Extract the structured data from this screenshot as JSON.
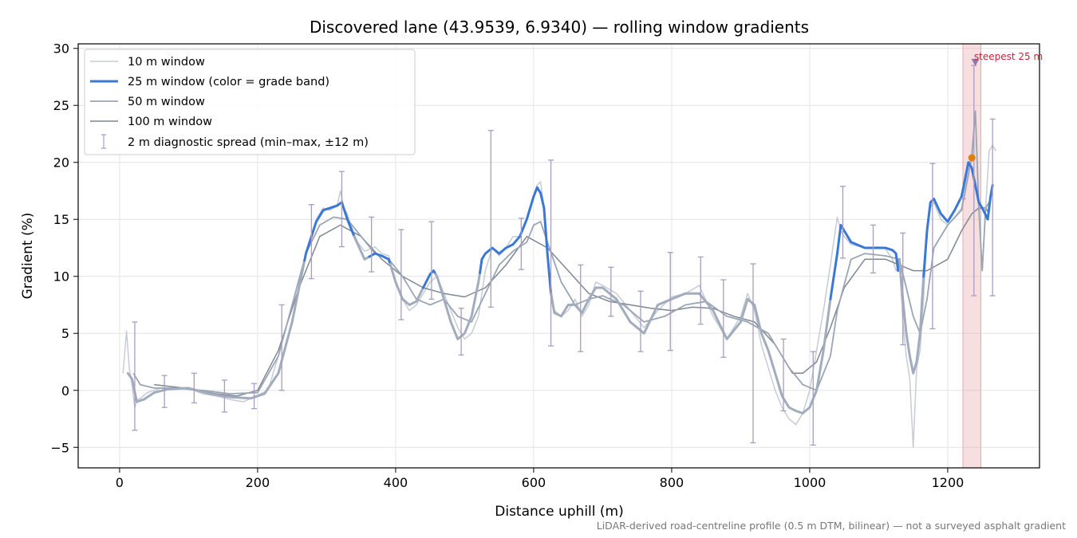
{
  "chart_data": {
    "type": "line",
    "title": "Discovered lane (43.9539, 6.9340) — rolling window gradients",
    "xlabel": "Distance uphill (m)",
    "ylabel": "Gradient (%)",
    "footnote": "LiDAR-derived road-centreline profile (0.5 m DTM, bilinear) — not a surveyed asphalt gradient",
    "xlim": [
      -60,
      1333
    ],
    "ylim": [
      -6.8,
      30.4
    ],
    "x_ticks": [
      0,
      200,
      400,
      600,
      800,
      1000,
      1200
    ],
    "y_ticks": [
      -5,
      0,
      5,
      10,
      15,
      20,
      25,
      30
    ],
    "grid": true,
    "legend_position": "top-left",
    "colors": {
      "w10": "#c6ccd6",
      "w25_band": "#3a78d6",
      "w25_flat": "#a1acbd",
      "w50": "#9aa5b4",
      "w100": "#7f8793",
      "errorbar": "#a99cc0",
      "highlight": "#e9a8ae",
      "peak": "#e07f10",
      "marker": "#8e78ac",
      "annot": "#c0283a"
    },
    "series": [
      {
        "name": "10 m window",
        "x": [
          5,
          10,
          14,
          18,
          22,
          26,
          30,
          40,
          50,
          60,
          70,
          80,
          100,
          120,
          140,
          160,
          180,
          200,
          215,
          230,
          250,
          270,
          285,
          295,
          305,
          315,
          320,
          325,
          330,
          335,
          345,
          355,
          370,
          380,
          390,
          400,
          410,
          420,
          430,
          440,
          450,
          460,
          470,
          480,
          490,
          500,
          510,
          520,
          530,
          540,
          550,
          560,
          570,
          580,
          590,
          600,
          605,
          610,
          615,
          620,
          625,
          630,
          640,
          650,
          660,
          670,
          680,
          690,
          700,
          720,
          740,
          760,
          780,
          800,
          820,
          840,
          860,
          880,
          900,
          910,
          920,
          930,
          940,
          950,
          960,
          970,
          980,
          990,
          1000,
          1010,
          1020,
          1030,
          1040,
          1045,
          1050,
          1060,
          1080,
          1100,
          1110,
          1120,
          1125,
          1130,
          1135,
          1140,
          1145,
          1150,
          1155,
          1160,
          1165,
          1170,
          1175,
          1180,
          1190,
          1200,
          1210,
          1220,
          1225,
          1230,
          1235,
          1240,
          1245,
          1250,
          1255,
          1260,
          1265,
          1270
        ],
        "y": [
          1.5,
          5.2,
          2.0,
          0.5,
          -1.5,
          -0.8,
          -0.7,
          -0.2,
          0.0,
          0.2,
          0.1,
          0.3,
          0.2,
          -0.3,
          -0.5,
          -0.8,
          -1.0,
          -0.4,
          0.0,
          3.0,
          7.5,
          12.0,
          15.0,
          16.0,
          15.8,
          16.2,
          17.5,
          16.0,
          15.5,
          14.5,
          13.0,
          12.2,
          12.6,
          12.0,
          11.8,
          9.5,
          8.0,
          7.0,
          7.5,
          8.5,
          9.5,
          10.0,
          8.5,
          7.0,
          5.5,
          4.5,
          5.0,
          6.5,
          10.5,
          12.5,
          11.8,
          12.5,
          13.5,
          13.5,
          15.0,
          17.0,
          18.0,
          18.3,
          16.0,
          12.0,
          9.0,
          7.0,
          6.5,
          7.0,
          8.0,
          6.5,
          7.5,
          9.5,
          9.2,
          8.5,
          7.0,
          5.5,
          7.0,
          8.2,
          8.5,
          9.2,
          6.5,
          4.5,
          6.5,
          8.5,
          7.0,
          4.0,
          2.0,
          0.0,
          -1.5,
          -2.5,
          -3.0,
          -2.0,
          0.0,
          3.5,
          7.0,
          11.0,
          15.2,
          14.0,
          13.5,
          12.8,
          12.5,
          12.6,
          12.4,
          11.5,
          10.5,
          11.0,
          6.0,
          3.0,
          1.0,
          -5.0,
          2.0,
          3.5,
          8.0,
          14.0,
          16.0,
          16.5,
          15.0,
          14.5,
          15.2,
          16.0,
          18.0,
          19.0,
          21.0,
          24.5,
          16.0,
          10.5,
          16.0,
          21.0,
          21.5,
          21.0
        ]
      },
      {
        "name": "25 m window (color = grade band)",
        "x": [
          12,
          18,
          25,
          35,
          50,
          70,
          100,
          130,
          160,
          190,
          210,
          230,
          250,
          270,
          285,
          295,
          305,
          315,
          322,
          330,
          340,
          355,
          370,
          380,
          390,
          400,
          410,
          420,
          430,
          440,
          450,
          455,
          460,
          470,
          480,
          490,
          500,
          510,
          520,
          525,
          530,
          540,
          550,
          560,
          570,
          580,
          590,
          600,
          605,
          610,
          615,
          620,
          625,
          630,
          640,
          650,
          660,
          670,
          680,
          690,
          700,
          720,
          740,
          760,
          780,
          800,
          820,
          840,
          860,
          880,
          900,
          910,
          920,
          930,
          940,
          950,
          960,
          970,
          980,
          990,
          1000,
          1010,
          1020,
          1030,
          1040,
          1045,
          1050,
          1060,
          1080,
          1100,
          1110,
          1120,
          1125,
          1128,
          1130,
          1135,
          1140,
          1145,
          1150,
          1155,
          1160,
          1165,
          1170,
          1175,
          1180,
          1190,
          1200,
          1210,
          1220,
          1225,
          1230,
          1235,
          1240,
          1245,
          1250,
          1258,
          1262,
          1265
        ],
        "y": [
          1.5,
          1.0,
          -1.0,
          -0.8,
          -0.2,
          0.1,
          0.2,
          -0.3,
          -0.6,
          -0.7,
          -0.3,
          1.5,
          6.0,
          12.0,
          14.8,
          15.8,
          16.0,
          16.2,
          16.5,
          15.0,
          13.5,
          11.5,
          12.0,
          11.8,
          11.5,
          9.5,
          8.0,
          7.5,
          7.8,
          9.0,
          10.2,
          10.5,
          10.0,
          8.0,
          6.0,
          4.5,
          5.0,
          6.5,
          9.5,
          11.5,
          12.0,
          12.5,
          12.0,
          12.5,
          12.8,
          13.5,
          15.0,
          17.0,
          17.8,
          17.3,
          16.0,
          12.0,
          8.5,
          6.8,
          6.5,
          7.5,
          7.5,
          6.8,
          8.0,
          9.0,
          9.0,
          8.0,
          6.0,
          5.0,
          7.5,
          8.0,
          8.5,
          8.5,
          7.0,
          4.5,
          6.0,
          8.0,
          7.5,
          5.0,
          3.5,
          1.5,
          -0.5,
          -1.5,
          -1.8,
          -2.0,
          -1.5,
          0.0,
          3.5,
          8.0,
          12.0,
          14.5,
          14.0,
          13.0,
          12.5,
          12.5,
          12.5,
          12.3,
          12.0,
          10.5,
          11.5,
          8.0,
          5.0,
          3.0,
          1.5,
          2.5,
          5.0,
          10.0,
          14.0,
          16.5,
          16.8,
          15.5,
          14.8,
          15.8,
          17.0,
          18.5,
          20.0,
          19.5,
          18.0,
          16.5,
          16.0,
          15.0,
          17.0,
          18.0
        ],
        "bands": [
          {
            "from": 0,
            "to": 268,
            "color": "#a1acbd"
          },
          {
            "from": 268,
            "to": 340,
            "color": "#3a78d6"
          },
          {
            "from": 340,
            "to": 362,
            "color": "#a1acbd"
          },
          {
            "from": 362,
            "to": 392,
            "color": "#3a78d6"
          },
          {
            "from": 392,
            "to": 440,
            "color": "#a1acbd"
          },
          {
            "from": 440,
            "to": 458,
            "color": "#3a78d6"
          },
          {
            "from": 458,
            "to": 522,
            "color": "#a1acbd"
          },
          {
            "from": 522,
            "to": 625,
            "color": "#3a78d6"
          },
          {
            "from": 625,
            "to": 1030,
            "color": "#a1acbd"
          },
          {
            "from": 1030,
            "to": 1130,
            "color": "#3a78d6"
          },
          {
            "from": 1130,
            "to": 1165,
            "color": "#a1acbd"
          },
          {
            "from": 1165,
            "to": 1270,
            "color": "#3a78d6"
          }
        ]
      },
      {
        "name": "50 m window",
        "x": [
          20,
          30,
          50,
          80,
          120,
          160,
          200,
          230,
          250,
          270,
          290,
          310,
          330,
          350,
          370,
          390,
          410,
          430,
          450,
          470,
          490,
          510,
          530,
          550,
          570,
          590,
          600,
          610,
          620,
          640,
          660,
          680,
          700,
          730,
          760,
          790,
          820,
          850,
          880,
          910,
          940,
          970,
          990,
          1010,
          1030,
          1040,
          1060,
          1080,
          1110,
          1130,
          1140,
          1150,
          1160,
          1170,
          1180,
          1200,
          1220,
          1235,
          1240,
          1245,
          1250,
          1255,
          1260
        ],
        "y": [
          1.5,
          0.5,
          0.2,
          0.2,
          0.0,
          -0.3,
          -0.2,
          3.0,
          7.5,
          12.0,
          14.5,
          15.2,
          15.0,
          13.5,
          12.0,
          11.5,
          10.0,
          8.0,
          7.5,
          8.0,
          6.5,
          6.0,
          8.5,
          11.0,
          12.2,
          13.0,
          14.5,
          14.8,
          13.0,
          9.5,
          7.5,
          8.0,
          8.3,
          7.5,
          6.0,
          6.5,
          7.5,
          7.8,
          6.5,
          6.0,
          5.0,
          2.0,
          0.5,
          0.0,
          3.0,
          7.0,
          11.5,
          12.0,
          11.8,
          11.5,
          9.0,
          6.5,
          5.0,
          8.0,
          12.5,
          14.5,
          15.8,
          20.5,
          24.5,
          16.0,
          10.5,
          16.0,
          16.5
        ]
      },
      {
        "name": "100 m window",
        "x": [
          50,
          80,
          110,
          140,
          170,
          200,
          230,
          260,
          290,
          320,
          350,
          380,
          410,
          440,
          470,
          500,
          530,
          560,
          590,
          620,
          650,
          680,
          710,
          740,
          770,
          800,
          830,
          860,
          890,
          920,
          950,
          975,
          990,
          1010,
          1030,
          1050,
          1080,
          1110,
          1130,
          1150,
          1170,
          1200,
          1220,
          1235,
          1245,
          1255,
          1260
        ],
        "y": [
          0.5,
          0.3,
          0.0,
          -0.3,
          -0.5,
          0.0,
          3.5,
          9.0,
          13.5,
          14.5,
          13.5,
          11.5,
          10.0,
          9.0,
          8.5,
          8.2,
          9.0,
          11.0,
          13.5,
          12.5,
          10.5,
          8.5,
          7.8,
          7.5,
          7.2,
          7.0,
          7.3,
          7.2,
          6.5,
          6.0,
          4.0,
          1.5,
          1.5,
          2.5,
          5.5,
          9.0,
          11.5,
          11.5,
          11.0,
          10.5,
          10.5,
          11.5,
          14.0,
          15.5,
          16.0,
          16.0,
          15.5
        ]
      }
    ],
    "errorbars": {
      "name": "2 m diagnostic spread (min–max, ±12 m)",
      "x": [
        22,
        65,
        108,
        152,
        195,
        235,
        278,
        322,
        365,
        408,
        452,
        495,
        538,
        582,
        625,
        668,
        712,
        755,
        798,
        842,
        875,
        918,
        962,
        1005,
        1048,
        1092,
        1135,
        1178,
        1222,
        1238,
        1265
      ],
      "low": [
        -3.5,
        -1.5,
        -1.1,
        -1.9,
        -1.6,
        0.0,
        9.8,
        12.6,
        10.4,
        6.2,
        8.0,
        3.1,
        7.3,
        10.6,
        3.9,
        3.4,
        6.5,
        3.4,
        3.5,
        5.8,
        2.9,
        -4.6,
        -1.8,
        -4.8,
        11.6,
        10.3,
        4.0,
        5.4,
        16.8,
        8.3,
        8.3
      ],
      "high": [
        6.0,
        1.3,
        1.5,
        0.9,
        0.6,
        7.5,
        16.3,
        19.2,
        15.2,
        14.1,
        14.8,
        7.2,
        22.8,
        15.1,
        20.2,
        11.0,
        10.8,
        8.7,
        12.1,
        11.7,
        9.7,
        11.1,
        4.5,
        3.4,
        17.9,
        14.5,
        13.8,
        19.9,
        16.8,
        28.5,
        23.8
      ]
    },
    "steepest": {
      "label": "steepest 25 m",
      "x_range": [
        1222,
        1248
      ],
      "peak_x": 1235,
      "peak_y": 20.4,
      "marker_x": 1240,
      "marker_y": 28.8
    }
  }
}
